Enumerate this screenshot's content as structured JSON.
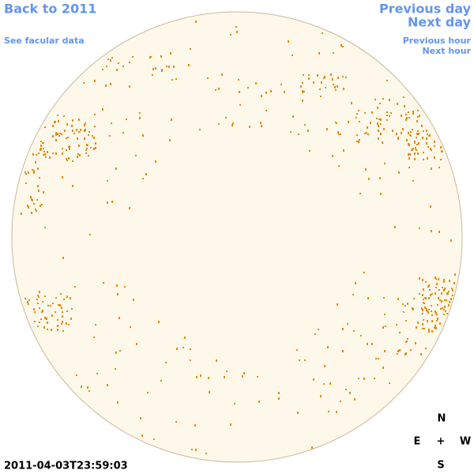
{
  "links": {
    "back": "Back to 2011",
    "facular": "See facular data",
    "previous_day": "Previous day",
    "next_day": "Next day",
    "previous_hour": "Previous hour",
    "next_hour": "Next hour"
  },
  "timestamp": "2011-04-03T23:59:03",
  "compass": {
    "north": "N",
    "east": "E",
    "center": "+",
    "west": "W",
    "south": "S"
  }
}
